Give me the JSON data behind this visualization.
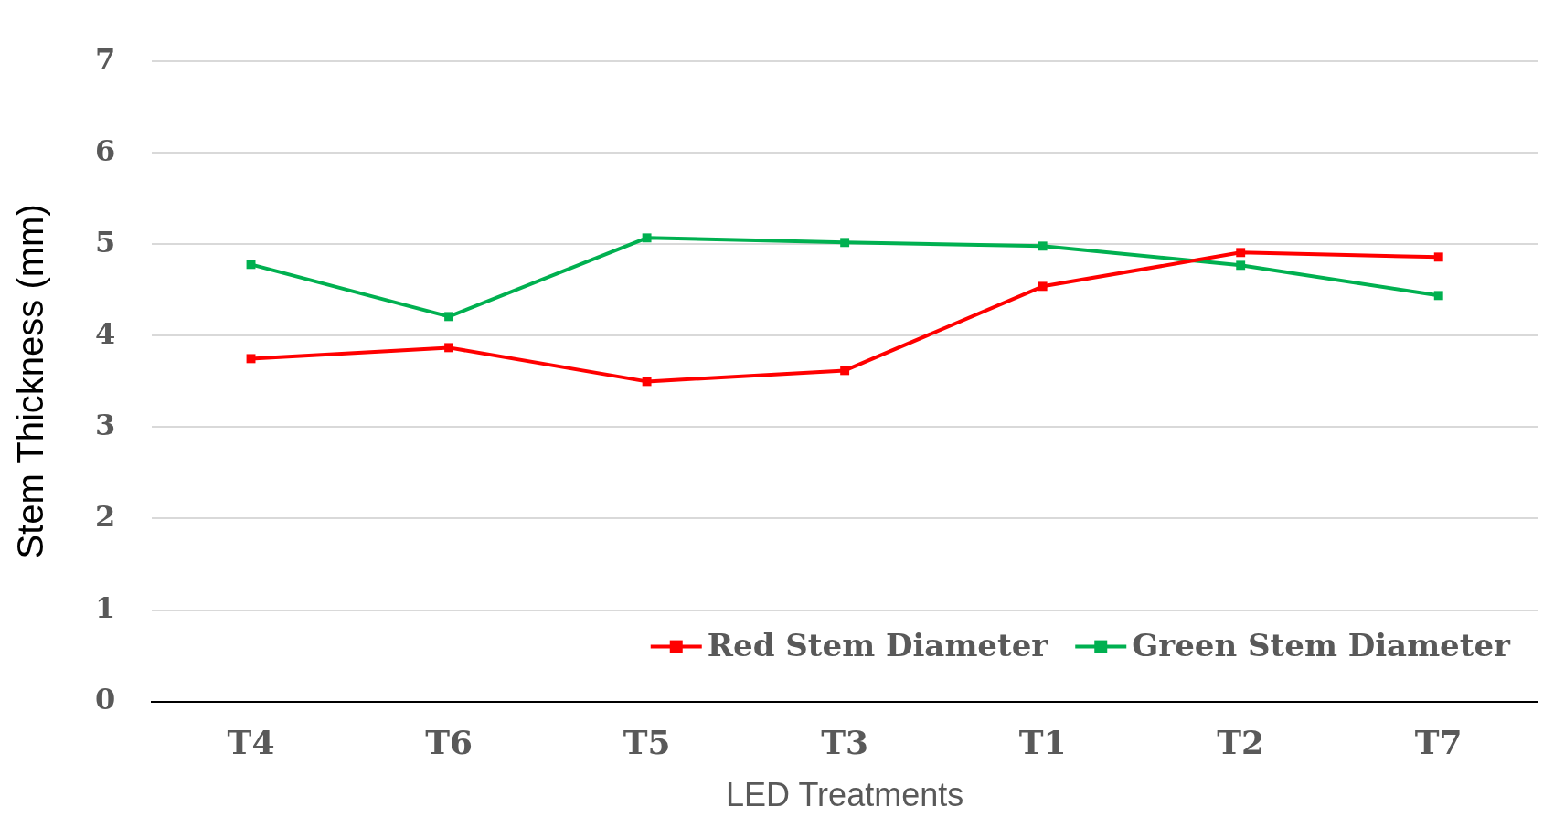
{
  "chart_data": {
    "type": "line",
    "xlabel": "LED Treatments",
    "ylabel": "Stem Thickness (mm)",
    "categories": [
      "T4",
      "T6",
      "T5",
      "T3",
      "T1",
      "T2",
      "T7"
    ],
    "series": [
      {
        "name": "Red Stem Diameter",
        "color": "#ff0000",
        "values": [
          3.75,
          3.87,
          3.5,
          3.62,
          4.54,
          4.91,
          4.86
        ]
      },
      {
        "name": "Green Stem Diameter",
        "color": "#00b050",
        "values": [
          4.78,
          4.21,
          5.07,
          5.02,
          4.98,
          4.77,
          4.44
        ]
      }
    ],
    "ylim": [
      0,
      7
    ],
    "yticks": [
      0,
      1,
      2,
      3,
      4,
      5,
      6,
      7
    ],
    "grid": "y",
    "legend": "bottom right",
    "marker": "square",
    "line_style": "solid"
  }
}
